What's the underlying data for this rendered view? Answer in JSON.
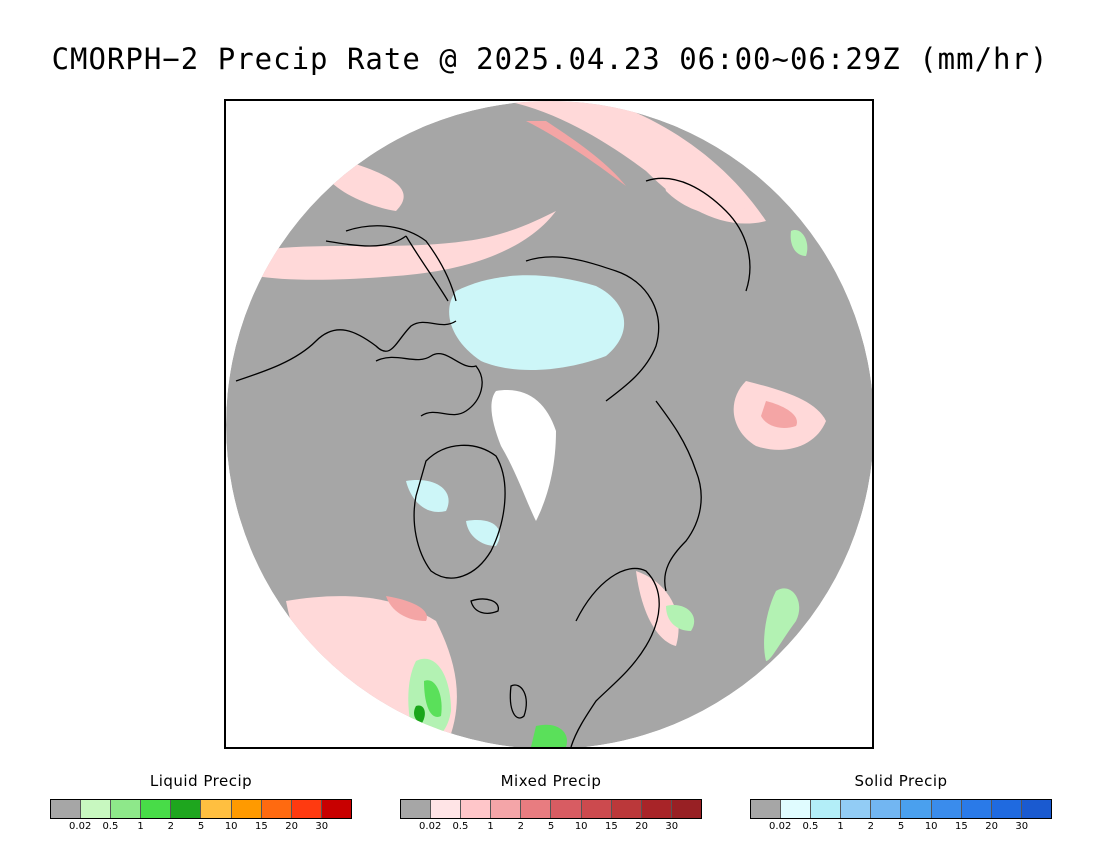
{
  "title": "CMORPH−2 Precip Rate @ 2025.04.23 06:00~06:29Z (mm/hr)",
  "map": {
    "colors": {
      "no_precip": "#a6a6a6",
      "mixed_light": "#ffd9d9",
      "mixed_mid": "#f4a5a5",
      "liquid_light": "#b3f2b3",
      "liquid_mid": "#5ae05a",
      "liquid_dark": "#1aa61a",
      "solid_light": "#cdf6f8",
      "solid_white": "#ffffff",
      "coast": "#000000"
    }
  },
  "legends": [
    {
      "title": "Liquid Precip",
      "colors": [
        "#a6a6a6",
        "#c8f8c0",
        "#8ee88a",
        "#48dc48",
        "#1ea61e",
        "#ffbf40",
        "#ff9a00",
        "#ff6a10",
        "#ff3a10",
        "#c80000"
      ],
      "ticks": [
        "0.02",
        "0.5",
        "1",
        "2",
        "5",
        "10",
        "15",
        "20",
        "30"
      ]
    },
    {
      "title": "Mixed Precip",
      "colors": [
        "#a6a6a6",
        "#ffe4e6",
        "#ffc6c9",
        "#f4a5a8",
        "#e87c80",
        "#d85c62",
        "#cc4a4e",
        "#bb383a",
        "#a82428",
        "#982024"
      ],
      "ticks": [
        "0.02",
        "0.5",
        "1",
        "2",
        "5",
        "10",
        "15",
        "20",
        "30"
      ]
    },
    {
      "title": "Solid Precip",
      "colors": [
        "#a6a6a6",
        "#e0fcff",
        "#b3eef8",
        "#92ccf5",
        "#72b6f2",
        "#4aa0ee",
        "#3a8cec",
        "#2a7ae8",
        "#1f6ae0",
        "#1a5ad0"
      ],
      "ticks": [
        "0.02",
        "0.5",
        "1",
        "2",
        "5",
        "10",
        "15",
        "20",
        "30"
      ]
    }
  ]
}
